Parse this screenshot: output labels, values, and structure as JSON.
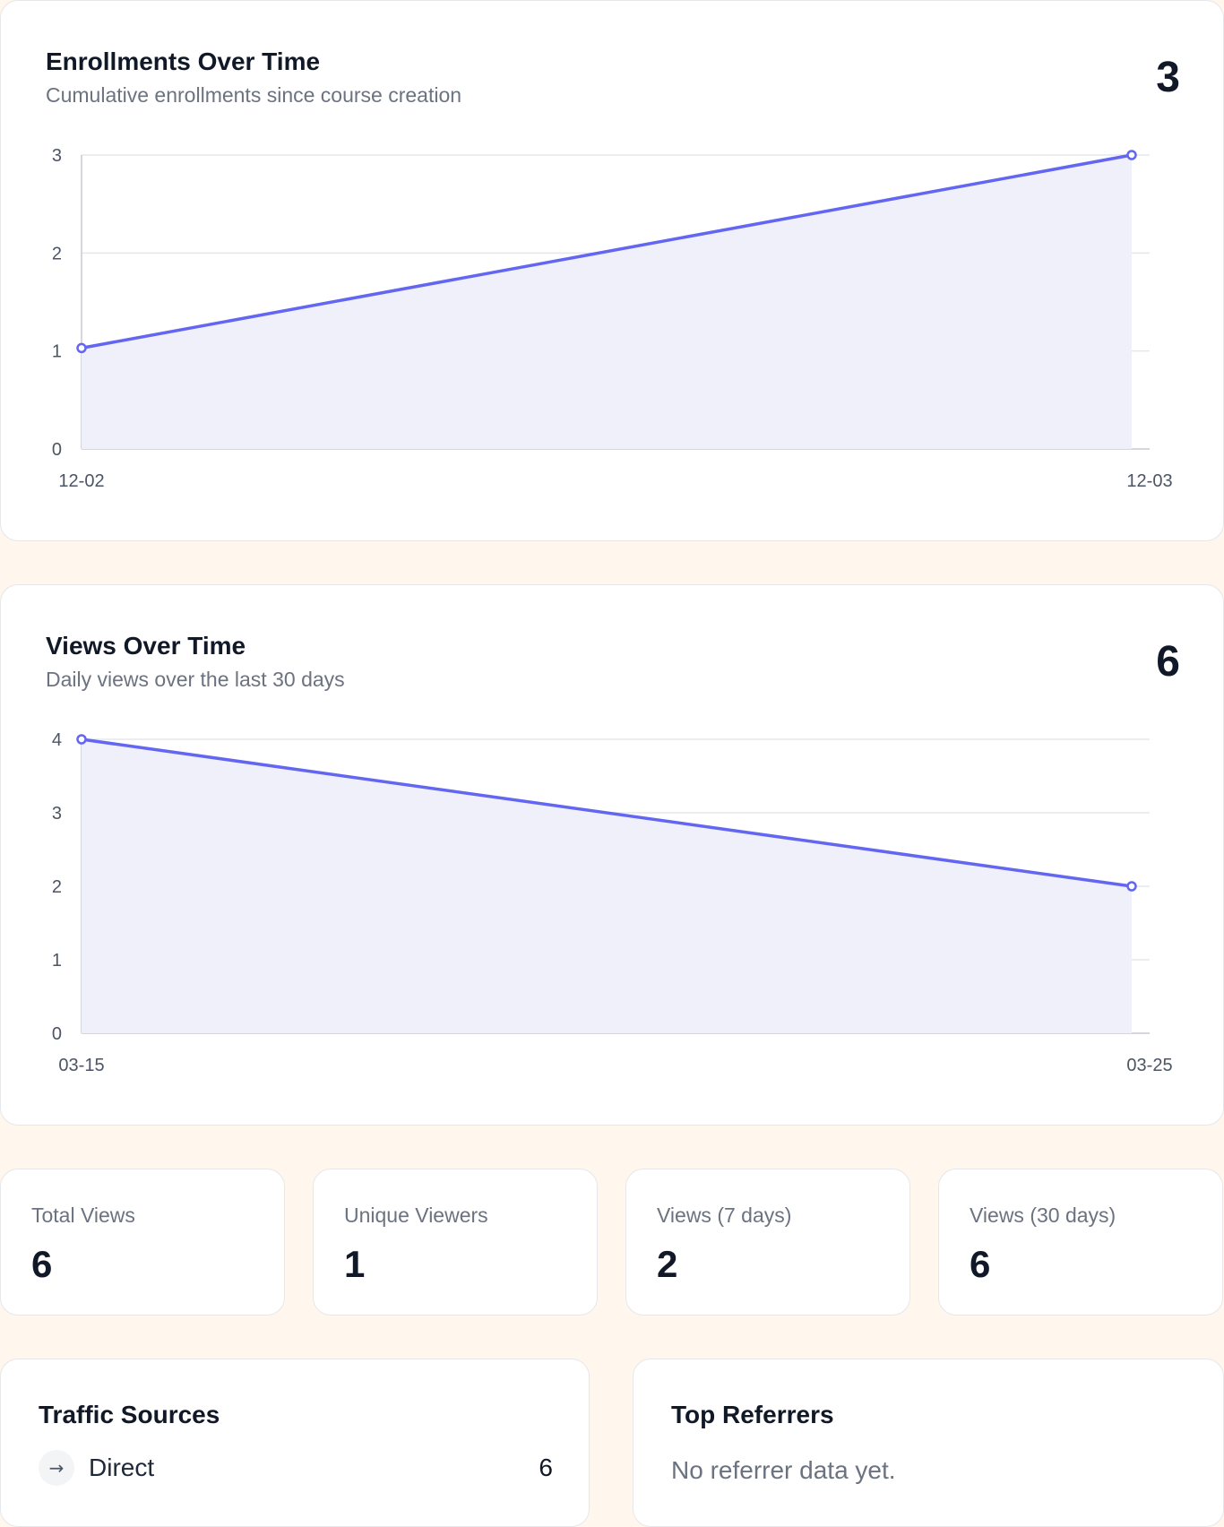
{
  "enrollments": {
    "title": "Enrollments Over Time",
    "subtitle": "Cumulative enrollments since course creation",
    "total": "3"
  },
  "views": {
    "title": "Views Over Time",
    "subtitle": "Daily views over the last 30 days",
    "total": "6"
  },
  "stats": [
    {
      "label": "Total Views",
      "value": "6"
    },
    {
      "label": "Unique Viewers",
      "value": "1"
    },
    {
      "label": "Views (7 days)",
      "value": "2"
    },
    {
      "label": "Views (30 days)",
      "value": "6"
    }
  ],
  "traffic_sources": {
    "title": "Traffic Sources",
    "items": [
      {
        "icon": "arrow-right-icon",
        "label": "Direct",
        "count": "6"
      }
    ]
  },
  "top_referrers": {
    "title": "Top Referrers",
    "empty_text": "No referrer data yet."
  },
  "colors": {
    "line": "#6366f1",
    "area": "#f0f0fb",
    "grid": "#e5e7eb",
    "background": "#fff6ee"
  },
  "chart_data": [
    {
      "type": "area",
      "title": "Enrollments Over Time",
      "x": [
        "12-02",
        "12-03"
      ],
      "series": [
        {
          "values": [
            1.03,
            3
          ]
        }
      ],
      "ylim": [
        0,
        3
      ],
      "yticks": [
        0,
        1,
        2,
        3
      ],
      "grid": true
    },
    {
      "type": "area",
      "title": "Views Over Time",
      "x": [
        "03-15",
        "03-25"
      ],
      "series": [
        {
          "values": [
            4,
            2
          ]
        }
      ],
      "ylim": [
        0,
        4
      ],
      "yticks": [
        0,
        1,
        2,
        3,
        4
      ],
      "grid": true
    }
  ]
}
